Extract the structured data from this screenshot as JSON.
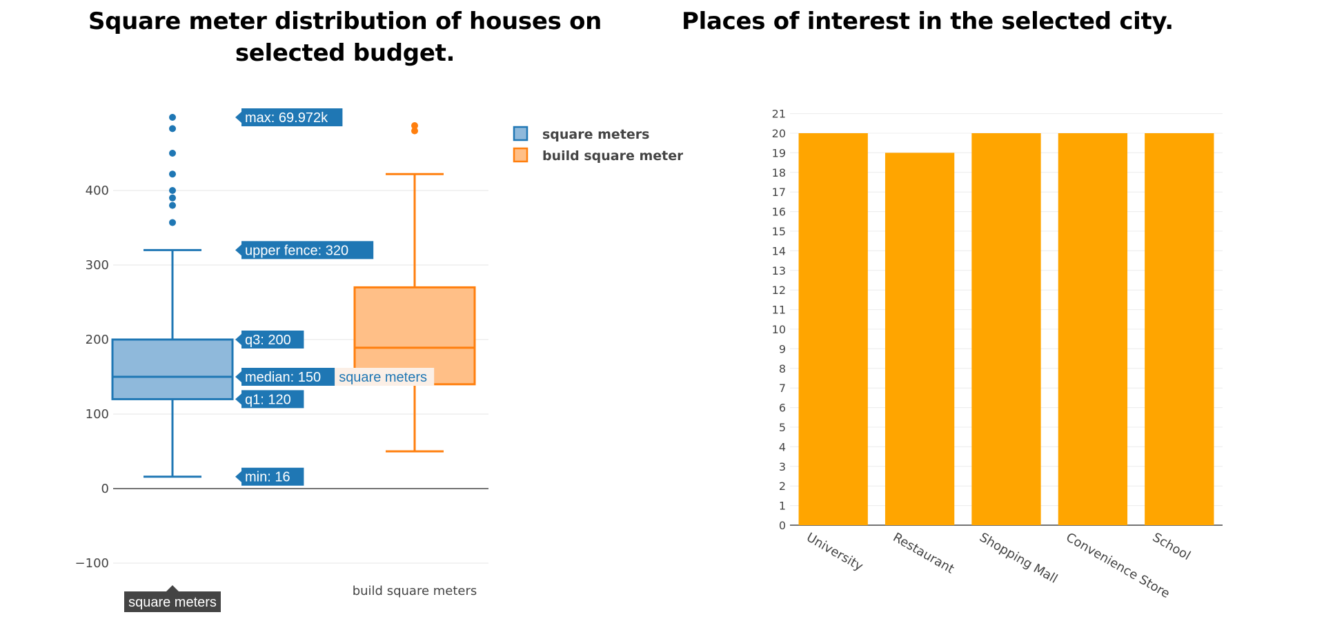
{
  "titles": {
    "left": "Square meter distribution of houses on selected budget.",
    "right": "Places of interest in the selected city."
  },
  "chart_data": [
    {
      "type": "box",
      "title": "Square meter distribution of houses on selected budget.",
      "ylim": [
        -125,
        510
      ],
      "yticks": [
        -100,
        0,
        100,
        200,
        300,
        400
      ],
      "grid": true,
      "legend_position": "top-right",
      "series": [
        {
          "name": "square meters",
          "color": "#1f77b4",
          "fill": "#8fb9db",
          "min": 16,
          "q1": 120,
          "median": 150,
          "q3": 200,
          "upper_fence": 320,
          "max": 69972,
          "outliers": [
            357,
            380,
            390,
            400,
            422,
            450,
            483
          ]
        },
        {
          "name": "build square meters",
          "color": "#ff7f0e",
          "fill": "#ffbf87",
          "min": 50,
          "q1": 140,
          "median": 189,
          "q3": 270,
          "upper_fence": 422,
          "outliers": [
            480,
            487
          ]
        }
      ],
      "hover": {
        "series": "square meters",
        "labels": [
          {
            "key": "max",
            "text": "max: 69.972k"
          },
          {
            "key": "upper_fence",
            "text": "upper fence: 320"
          },
          {
            "key": "q3",
            "text": "q3: 200"
          },
          {
            "key": "median",
            "text": "median: 150"
          },
          {
            "key": "q1",
            "text": "q1: 120"
          },
          {
            "key": "min",
            "text": "min: 16"
          }
        ],
        "trace_label": "square meters",
        "x_label": "square meters"
      }
    },
    {
      "type": "bar",
      "title": "Places of interest in the selected city.",
      "categories": [
        "University",
        "Restaurant",
        "Shopping Mall",
        "Convenience Store",
        "School"
      ],
      "values": [
        20,
        19,
        20,
        20,
        20
      ],
      "color": "#ffa500",
      "ylim": [
        0,
        21
      ],
      "grid": true
    }
  ]
}
